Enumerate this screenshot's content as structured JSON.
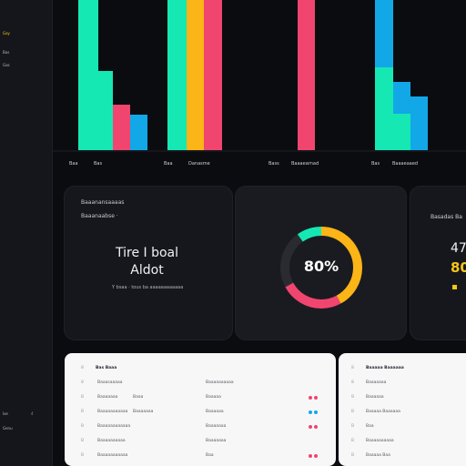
{
  "sidebar": {
    "items": [
      {
        "label": "Gay",
        "active": true
      },
      {
        "label": "Bas",
        "active": false
      },
      {
        "label": "Gas",
        "active": false
      }
    ],
    "bottom": [
      {
        "label": "Ixe",
        "count": "4"
      },
      {
        "label": "Genu",
        "count": ""
      }
    ]
  },
  "top_chart": {
    "colors": {
      "teal": "#16e8b4",
      "pink": "#f0456f",
      "blue": "#12a8e8",
      "yellow": "#fbb516"
    },
    "group_labels": [
      [
        "Baa",
        "Bas"
      ],
      [
        "Baa",
        "Danasme"
      ],
      [
        "Bass",
        "Baaaearnad"
      ],
      [
        "Bas",
        "Baaaeaaed"
      ]
    ]
  },
  "card_left": {
    "title": "Baaanansaaaas",
    "subtitle": "Baaanaabse ·",
    "big_text_line1": "Tire I boal",
    "big_text_line2": "Aldot",
    "meta": "Y bsaa · tous ba aaaaaaaaaaaa"
  },
  "card_mid": {
    "percent_label": "80%",
    "donut": {
      "yellow": 0.42,
      "pink": 0.25,
      "dark": 0.23,
      "teal": 0.1
    }
  },
  "card_right": {
    "title": "Basadas Ba",
    "value1": "47",
    "value2": "80"
  },
  "table_left": {
    "title": "Bas Baaa",
    "rows": [
      {
        "idx": "8",
        "a": "Baaasaaaaa",
        "b": "",
        "c": "Baaaaaaaaaa",
        "dots": []
      },
      {
        "idx": "B",
        "a": "Baaaaaaa",
        "b": "Baaa",
        "c": "Baaaaa",
        "dots": [
          "#f0456f",
          "#f0456f"
        ]
      },
      {
        "idx": "B",
        "a": "Baaaaaaaaaaa",
        "b": "Baaaaaaa",
        "c": "Baaaaaa",
        "dots": [
          "#12a8e8",
          "#12a8e8"
        ]
      },
      {
        "idx": "B",
        "a": "Baaaaaaaaaaaa",
        "b": "",
        "c": "Baaaaaaa",
        "dots": [
          "#f0456f",
          "#f0456f"
        ]
      },
      {
        "idx": "B",
        "a": "Baaaaaaaaaa",
        "b": "",
        "c": "Baaaaaaa",
        "dots": []
      },
      {
        "idx": "B",
        "a": "Baaaaaaaaaaa",
        "b": "",
        "c": "Baa",
        "dots": [
          "#f0456f",
          "#f0456f"
        ]
      }
    ]
  },
  "table_right": {
    "title": "Baaaaa Baaaaaa",
    "rows": [
      {
        "idx": "8",
        "a": "Baaaaaaa"
      },
      {
        "idx": "B",
        "a": "Baaaaaa"
      },
      {
        "idx": "B",
        "a": "Baaaaa Baaaaaa"
      },
      {
        "idx": "B",
        "a": "Baa"
      },
      {
        "idx": "B",
        "a": "Baaaaaaaaaa"
      },
      {
        "idx": "B",
        "a": "Baaaaa Baa"
      }
    ]
  }
}
